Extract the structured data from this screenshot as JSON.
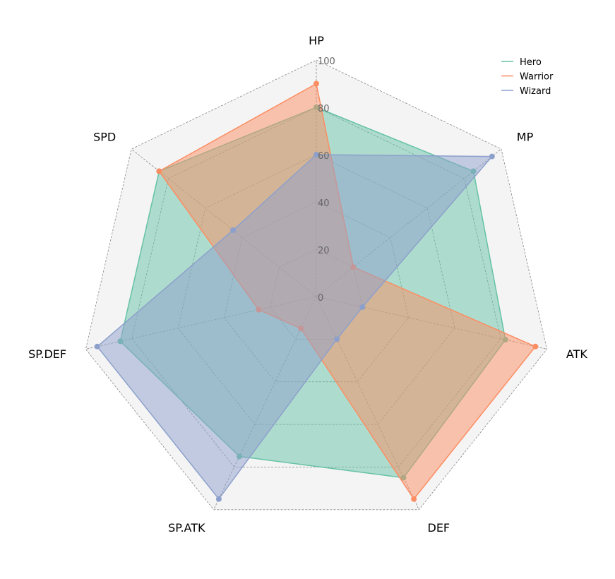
{
  "chart_data": {
    "type": "radar",
    "axes": [
      "HP",
      "MP",
      "ATK",
      "DEF",
      "SP.ATK",
      "SP.DEF",
      "SPD"
    ],
    "rlim": [
      0,
      100
    ],
    "ticks": [
      0,
      20,
      40,
      60,
      80,
      100
    ],
    "tick_labels": [
      "0",
      "20",
      "40",
      "60",
      "80",
      "100"
    ],
    "series": [
      {
        "name": "Hero",
        "color": "#66c2a5",
        "values": [
          80,
          85,
          82,
          85,
          75,
          85,
          85
        ]
      },
      {
        "name": "Warrior",
        "color": "#fc8d62",
        "values": [
          90,
          20,
          95,
          95,
          15,
          25,
          85
        ]
      },
      {
        "name": "Wizard",
        "color": "#8da0cb",
        "values": [
          60,
          95,
          20,
          20,
          95,
          95,
          45
        ]
      }
    ],
    "legend_position": "top-right",
    "background_color": "#f4f4f4",
    "grid": true
  }
}
